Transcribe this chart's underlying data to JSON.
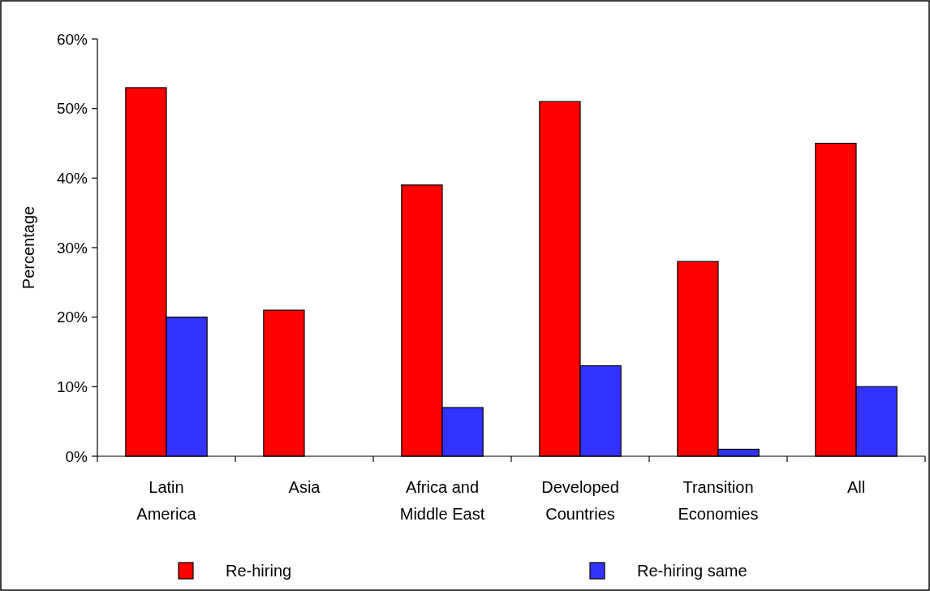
{
  "chart_data": {
    "type": "bar",
    "ylabel": "Percentage",
    "categories": [
      "Latin America",
      "Asia",
      "Africa and Middle East",
      "Developed Countries",
      "Transition Economies",
      "All"
    ],
    "series": [
      {
        "name": "Re-hiring",
        "color": "#ff0000",
        "values": [
          53,
          21,
          39,
          51,
          28,
          45
        ]
      },
      {
        "name": "Re-hiring same",
        "color": "#3333ff",
        "values": [
          20,
          0,
          7,
          13,
          1,
          10
        ]
      }
    ],
    "ylim": [
      0,
      60
    ],
    "yticks": [
      {
        "value": 0,
        "label": "0%"
      },
      {
        "value": 10,
        "label": "10%"
      },
      {
        "value": 20,
        "label": "20%"
      },
      {
        "value": 30,
        "label": "30%"
      },
      {
        "value": 40,
        "label": "40%"
      },
      {
        "value": 50,
        "label": "50%"
      },
      {
        "value": 60,
        "label": "60%"
      }
    ],
    "grid": false,
    "legend": "bottom"
  }
}
